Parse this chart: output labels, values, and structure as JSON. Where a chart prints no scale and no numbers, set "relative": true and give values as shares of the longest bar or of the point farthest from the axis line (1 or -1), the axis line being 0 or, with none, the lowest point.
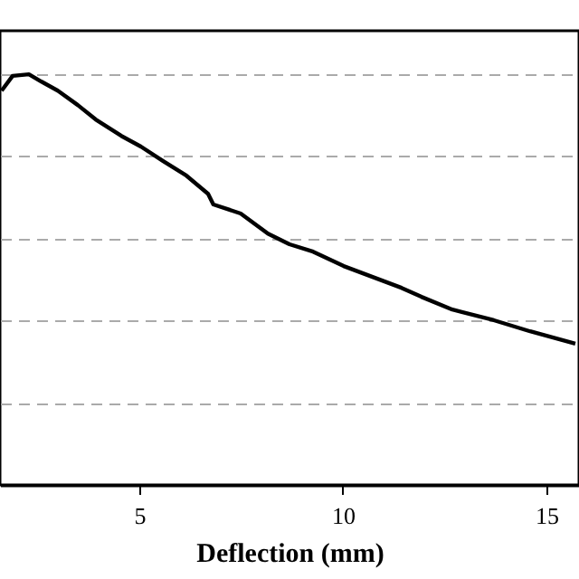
{
  "chart_data": {
    "type": "line",
    "xlabel": "Deflection (mm)",
    "relative": true,
    "grid": "y",
    "line_style": "solid",
    "marker": "none",
    "xlim": [
      1.58,
      15.8
    ],
    "xticks": [
      5,
      10,
      15
    ],
    "series": [
      {
        "color": "#000000",
        "x": [
          1.62,
          1.89,
          2.29,
          2.6,
          3.0,
          3.49,
          3.93,
          4.56,
          5.04,
          5.58,
          6.16,
          6.69,
          6.82,
          7.49,
          8.16,
          8.69,
          9.27,
          10.02,
          11.44,
          11.93,
          12.69,
          13.71,
          14.6,
          15.71
        ],
        "values": [
          0.96,
          0.996,
          1.0,
          0.982,
          0.96,
          0.925,
          0.89,
          0.85,
          0.824,
          0.789,
          0.753,
          0.709,
          0.683,
          0.661,
          0.612,
          0.586,
          0.568,
          0.533,
          0.48,
          0.458,
          0.427,
          0.401,
          0.374,
          0.344
        ]
      }
    ]
  }
}
